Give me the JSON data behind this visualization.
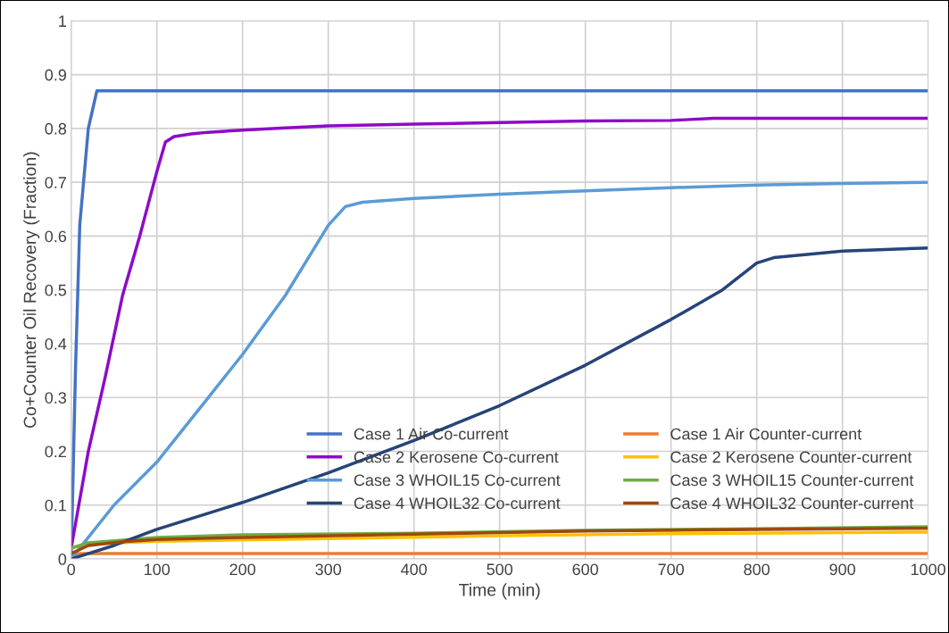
{
  "chart_data": {
    "type": "line",
    "xlabel": "Time (min)",
    "ylabel": "Co+Counter Oil Recovery (Fraction)",
    "xlim": [
      0,
      1000
    ],
    "xticks": [
      0,
      100,
      200,
      300,
      400,
      500,
      600,
      700,
      800,
      900,
      1000
    ],
    "ylim": [
      0,
      1
    ],
    "yticks": [
      0,
      0.1,
      0.2,
      0.3,
      0.4,
      0.5,
      0.6,
      0.7,
      0.8,
      0.9,
      1
    ],
    "grid": true,
    "legend": "bottom right",
    "marker": "none",
    "line_style": "solid",
    "series": [
      {
        "name": "Case 1 Air Co-current",
        "color": "#4472c4",
        "x": [
          0,
          5,
          10,
          20,
          30,
          1000
        ],
        "values": [
          0,
          0.35,
          0.62,
          0.8,
          0.87,
          0.87
        ]
      },
      {
        "name": "Case 1 Air Counter-current",
        "color": "#ed7d31",
        "x": [
          0,
          10,
          1000
        ],
        "values": [
          0,
          0.01,
          0.01
        ]
      },
      {
        "name": "Case 2 Kerosene Co-current",
        "color": "#8e0ac8",
        "x": [
          0,
          20,
          40,
          60,
          80,
          100,
          110,
          120,
          140,
          160,
          200,
          250,
          300,
          400,
          500,
          600,
          700,
          750,
          1000
        ],
        "values": [
          0.02,
          0.2,
          0.34,
          0.49,
          0.6,
          0.72,
          0.775,
          0.785,
          0.79,
          0.793,
          0.797,
          0.801,
          0.805,
          0.808,
          0.811,
          0.814,
          0.815,
          0.819,
          0.819
        ]
      },
      {
        "name": "Case 2 Kerosene Counter-current",
        "color": "#ffc000",
        "x": [
          0,
          20,
          100,
          300,
          500,
          700,
          1000
        ],
        "values": [
          0.02,
          0.028,
          0.033,
          0.038,
          0.043,
          0.047,
          0.05
        ]
      },
      {
        "name": "Case 3 WHOIL15 Co-current",
        "color": "#5b9bd5",
        "x": [
          0,
          20,
          50,
          100,
          150,
          200,
          250,
          300,
          320,
          340,
          400,
          500,
          600,
          700,
          800,
          900,
          1000
        ],
        "values": [
          0,
          0.04,
          0.1,
          0.18,
          0.28,
          0.38,
          0.49,
          0.62,
          0.655,
          0.663,
          0.67,
          0.678,
          0.684,
          0.69,
          0.695,
          0.698,
          0.7
        ]
      },
      {
        "name": "Case 3 WHOIL15 Counter-current",
        "color": "#70ad47",
        "x": [
          0,
          20,
          100,
          200,
          400,
          600,
          800,
          1000
        ],
        "values": [
          0.02,
          0.03,
          0.04,
          0.045,
          0.048,
          0.053,
          0.056,
          0.06
        ]
      },
      {
        "name": "Case 4 WHOIL32 Co-current",
        "color": "#264478",
        "x": [
          0,
          50,
          100,
          150,
          200,
          300,
          400,
          500,
          600,
          700,
          760,
          800,
          820,
          900,
          1000
        ],
        "values": [
          0,
          0.025,
          0.055,
          0.08,
          0.105,
          0.16,
          0.22,
          0.285,
          0.36,
          0.445,
          0.5,
          0.55,
          0.56,
          0.572,
          0.578
        ]
      },
      {
        "name": "Case 4 WHOIL32 Counter-current",
        "color": "#9e480e",
        "x": [
          0,
          20,
          60,
          100,
          200,
          400,
          600,
          800,
          1000
        ],
        "values": [
          0.01,
          0.025,
          0.032,
          0.036,
          0.04,
          0.046,
          0.052,
          0.055,
          0.057
        ]
      }
    ]
  }
}
